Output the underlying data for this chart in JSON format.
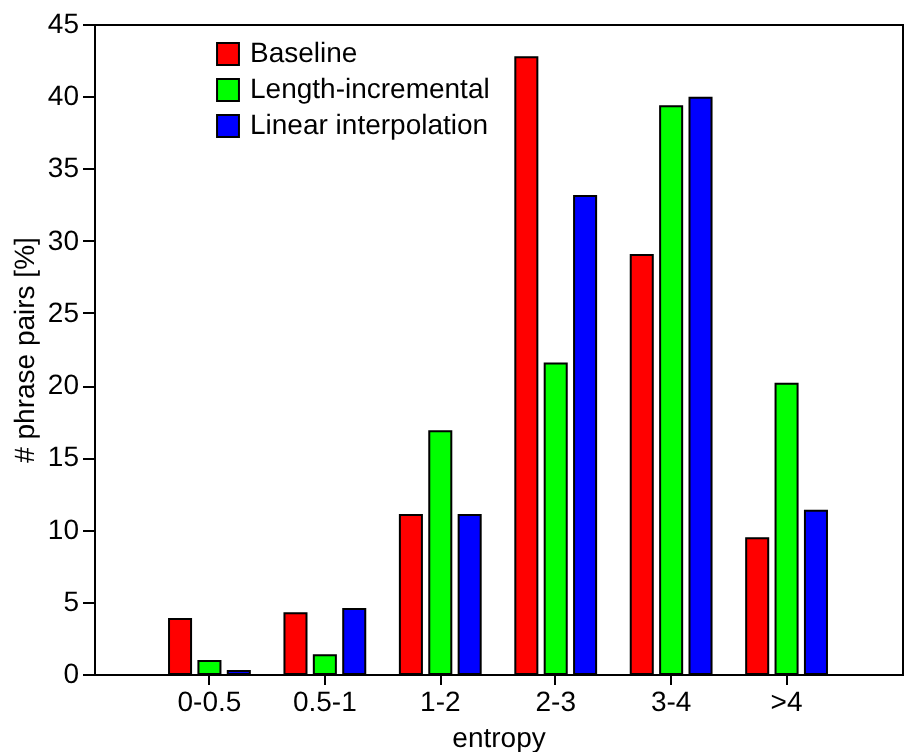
{
  "chart_data": {
    "type": "bar",
    "xlabel": "entropy",
    "ylabel": "# phrase pairs [%]",
    "categories": [
      "0-0.5",
      "0.5-1",
      "1-2",
      "2-3",
      "3-4",
      ">4"
    ],
    "series": [
      {
        "name": "Baseline",
        "color": "#ff0000",
        "values": [
          3.8,
          4.2,
          11,
          42.7,
          29,
          9.4
        ]
      },
      {
        "name": "Length-incremental",
        "color": "#00ff00",
        "values": [
          0.9,
          1.3,
          16.8,
          21.5,
          39.3,
          20.1
        ]
      },
      {
        "name": "Linear interpolation",
        "color": "#0000ff",
        "values": [
          0.2,
          4.5,
          11,
          33.1,
          39.9,
          11.3
        ]
      }
    ],
    "ylim": [
      0,
      45
    ],
    "yticks": [
      0,
      5,
      10,
      15,
      20,
      25,
      30,
      35,
      40,
      45
    ],
    "grid": false,
    "legend": "top left"
  }
}
